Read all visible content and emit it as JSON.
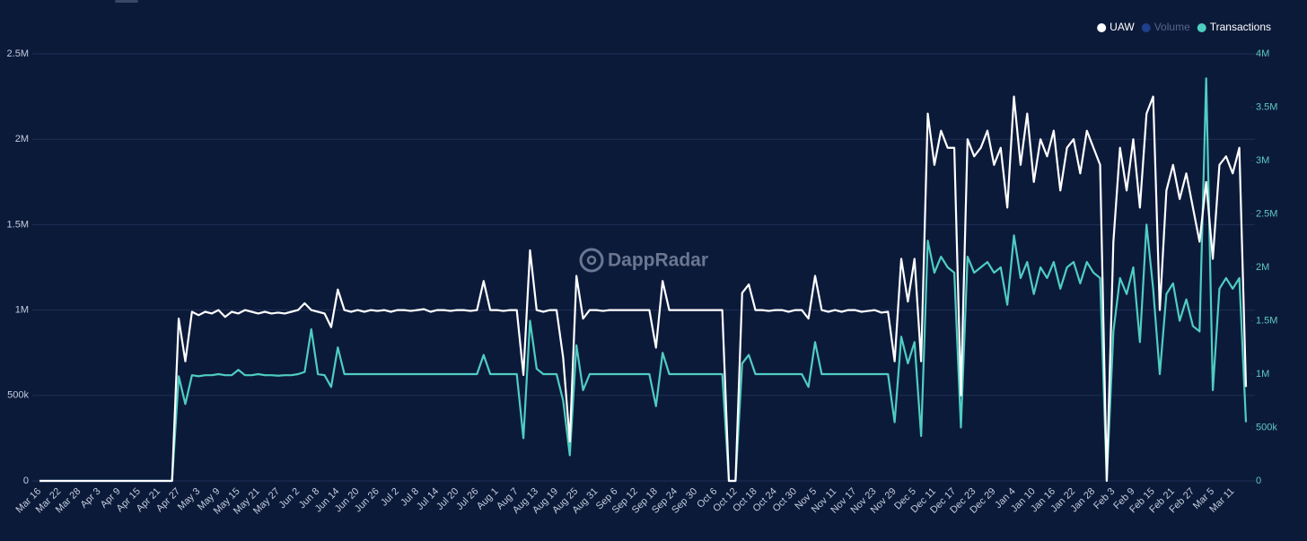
{
  "chart_data": {
    "type": "line",
    "watermark": "DappRadar",
    "categories": [
      "Mar 16",
      null,
      null,
      "Mar 22",
      null,
      null,
      "Mar 28",
      null,
      null,
      "Apr 3",
      null,
      null,
      "Apr 9",
      null,
      null,
      "Apr 15",
      null,
      null,
      "Apr 21",
      null,
      null,
      "Apr 27",
      null,
      null,
      "May 3",
      null,
      null,
      "May 9",
      null,
      null,
      "May 15",
      null,
      null,
      "May 21",
      null,
      null,
      "May 27",
      null,
      null,
      "Jun 2",
      null,
      null,
      "Jun 8",
      null,
      null,
      "Jun 14",
      null,
      null,
      "Jun 20",
      null,
      null,
      "Jun 26",
      null,
      null,
      "Jul 2",
      null,
      null,
      "Jul 8",
      null,
      null,
      "Jul 14",
      null,
      null,
      "Jul 20",
      null,
      null,
      "Jul 26",
      null,
      null,
      "Aug 1",
      null,
      null,
      "Aug 7",
      null,
      null,
      "Aug 13",
      null,
      null,
      "Aug 19",
      null,
      null,
      "Aug 25",
      null,
      null,
      "Aug 31",
      null,
      null,
      "Sep 6",
      null,
      null,
      "Sep 12",
      null,
      null,
      "Sep 18",
      null,
      null,
      "Sep 24",
      null,
      null,
      "Sep 30",
      null,
      null,
      "Oct 6",
      null,
      null,
      "Oct 12",
      null,
      null,
      "Oct 18",
      null,
      null,
      "Oct 24",
      null,
      null,
      "Oct 30",
      null,
      null,
      "Nov 5",
      null,
      null,
      "Nov 11",
      null,
      null,
      "Nov 17",
      null,
      null,
      "Nov 23",
      null,
      null,
      "Nov 29",
      null,
      null,
      "Dec 5",
      null,
      null,
      "Dec 11",
      null,
      null,
      "Dec 17",
      null,
      null,
      "Dec 23",
      null,
      null,
      "Dec 29",
      null,
      null,
      "Jan 4",
      null,
      null,
      "Jan 10",
      null,
      null,
      "Jan 16",
      null,
      null,
      "Jan 22",
      null,
      null,
      "Jan 28",
      null,
      null,
      "Feb 3",
      null,
      null,
      "Feb 9",
      null,
      null,
      "Feb 15",
      null,
      null,
      "Feb 21",
      null,
      null,
      "Feb 27",
      null,
      null,
      "Mar 5",
      null,
      null,
      "Mar 11",
      null,
      null
    ],
    "series": [
      {
        "name": "UAW",
        "color": "#ffffff",
        "values": [
          0,
          0,
          0,
          0,
          0,
          0,
          0,
          0,
          0,
          0,
          0,
          0,
          0,
          0,
          0,
          0,
          0,
          0,
          0,
          0,
          0,
          950000,
          700000,
          990000,
          970000,
          990000,
          980000,
          1000000,
          960000,
          990000,
          980000,
          1000000,
          990000,
          980000,
          990000,
          980000,
          985000,
          980000,
          990000,
          1000000,
          1040000,
          1000000,
          990000,
          980000,
          900000,
          1120000,
          1000000,
          990000,
          1000000,
          990000,
          1000000,
          995000,
          1000000,
          990000,
          1000000,
          1000000,
          995000,
          1000000,
          1005000,
          990000,
          1000000,
          1000000,
          995000,
          1000000,
          1000000,
          995000,
          1000000,
          1170000,
          1000000,
          1000000,
          995000,
          1000000,
          1000000,
          620000,
          1350000,
          1000000,
          990000,
          1000000,
          1000000,
          720000,
          230000,
          1200000,
          950000,
          1000000,
          1000000,
          995000,
          1000000,
          1000000,
          1000000,
          1000000,
          1000000,
          1000000,
          1000000,
          780000,
          1170000,
          1000000,
          1000000,
          1000000,
          1000000,
          1000000,
          1000000,
          1000000,
          1000000,
          1000000,
          0,
          0,
          1100000,
          1150000,
          1000000,
          1000000,
          995000,
          1000000,
          1000000,
          990000,
          1000000,
          1000000,
          950000,
          1200000,
          1000000,
          990000,
          1000000,
          990000,
          1000000,
          1000000,
          990000,
          995000,
          1000000,
          985000,
          990000,
          700000,
          1300000,
          1050000,
          1300000,
          700000,
          2150000,
          1850000,
          2050000,
          1950000,
          1950000,
          500000,
          2000000,
          1900000,
          1950000,
          2050000,
          1850000,
          1950000,
          1600000,
          2250000,
          1850000,
          2150000,
          1750000,
          2000000,
          1900000,
          2050000,
          1700000,
          1950000,
          2000000,
          1800000,
          2050000,
          1950000,
          1850000,
          0,
          1400000,
          1950000,
          1700000,
          2000000,
          1600000,
          2150000,
          2250000,
          1000000,
          1700000,
          1850000,
          1650000,
          1800000,
          1600000,
          1400000,
          1750000,
          1300000,
          1850000,
          1900000,
          1800000,
          1950000,
          550000
        ]
      },
      {
        "name": "Volume",
        "color": "#1f3f8c",
        "visible": false
      },
      {
        "name": "Transactions",
        "color": "#4fcdc1",
        "axis": "y2",
        "values": [
          0,
          0,
          0,
          0,
          0,
          0,
          0,
          0,
          0,
          0,
          0,
          0,
          0,
          0,
          0,
          0,
          0,
          0,
          0,
          0,
          0,
          980000,
          720000,
          990000,
          980000,
          990000,
          990000,
          1000000,
          990000,
          990000,
          1040000,
          990000,
          990000,
          1000000,
          990000,
          990000,
          985000,
          990000,
          990000,
          1000000,
          1020000,
          1420000,
          1000000,
          990000,
          880000,
          1250000,
          1000000,
          1000000,
          1000000,
          1000000,
          1000000,
          1000000,
          1000000,
          1000000,
          1000000,
          1000000,
          1000000,
          1000000,
          1000000,
          1000000,
          1000000,
          1000000,
          1000000,
          1000000,
          1000000,
          1000000,
          1000000,
          1180000,
          1000000,
          1000000,
          1000000,
          1000000,
          1000000,
          400000,
          1500000,
          1050000,
          1000000,
          1000000,
          1000000,
          750000,
          240000,
          1270000,
          850000,
          1000000,
          1000000,
          1000000,
          1000000,
          1000000,
          1000000,
          1000000,
          1000000,
          1000000,
          1000000,
          700000,
          1200000,
          1000000,
          1000000,
          1000000,
          1000000,
          1000000,
          1000000,
          1000000,
          1000000,
          1000000,
          0,
          0,
          1100000,
          1180000,
          1000000,
          1000000,
          1000000,
          1000000,
          1000000,
          1000000,
          1000000,
          1000000,
          880000,
          1300000,
          1000000,
          1000000,
          1000000,
          1000000,
          1000000,
          1000000,
          1000000,
          1000000,
          1000000,
          1000000,
          1000000,
          550000,
          1350000,
          1100000,
          1300000,
          420000,
          2250000,
          1950000,
          2100000,
          2000000,
          1950000,
          500000,
          2100000,
          1950000,
          2000000,
          2050000,
          1950000,
          2000000,
          1650000,
          2300000,
          1900000,
          2050000,
          1750000,
          2000000,
          1900000,
          2050000,
          1800000,
          2000000,
          2050000,
          1850000,
          2050000,
          1950000,
          1900000,
          0,
          1400000,
          1900000,
          1750000,
          2000000,
          1300000,
          2400000,
          1800000,
          1000000,
          1750000,
          1850000,
          1500000,
          1700000,
          1450000,
          1400000,
          3770000,
          850000,
          1800000,
          1900000,
          1800000,
          1900000,
          550000
        ]
      }
    ],
    "ylim": [
      0,
      2500000
    ],
    "yticks": [
      0,
      {
        "value": 500000,
        "label": "500k"
      },
      {
        "value": 1000000,
        "label": "1M"
      },
      {
        "value": 1500000,
        "label": "1.5M"
      },
      {
        "value": 2000000,
        "label": "2M"
      },
      {
        "value": 2500000,
        "label": "2.5M"
      }
    ],
    "y2lim": [
      0,
      4000000
    ],
    "y2ticks": [
      0,
      {
        "value": 500000,
        "label": "500k"
      },
      {
        "value": 1000000,
        "label": "1M"
      },
      {
        "value": 1500000,
        "label": "1.5M"
      },
      {
        "value": 2000000,
        "label": "2M"
      },
      {
        "value": 2500000,
        "label": "2.5M"
      },
      {
        "value": 3000000,
        "label": "3M"
      },
      {
        "value": 3500000,
        "label": "3.5M"
      },
      {
        "value": 4000000,
        "label": "4M"
      }
    ],
    "grid": true,
    "legend": "top-right"
  }
}
